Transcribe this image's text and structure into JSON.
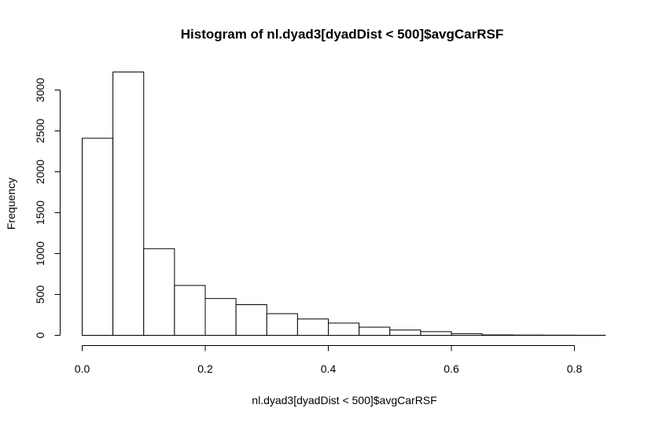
{
  "chart_data": {
    "type": "bar",
    "title": "Histogram of nl.dyad3[dyadDist < 500]$avgCarRSF",
    "xlabel": "nl.dyad3[dyadDist < 500]$avgCarRSF",
    "ylabel": "Frequency",
    "bin_edges": [
      0.0,
      0.05,
      0.1,
      0.15,
      0.2,
      0.25,
      0.3,
      0.35,
      0.4,
      0.45,
      0.5,
      0.55,
      0.6,
      0.65,
      0.7,
      0.75,
      0.8,
      0.85
    ],
    "values": [
      2410,
      3220,
      1060,
      610,
      450,
      375,
      265,
      200,
      150,
      100,
      65,
      45,
      20,
      5,
      3,
      2,
      1
    ],
    "xlim": [
      0.0,
      0.85
    ],
    "ylim": [
      0,
      3220
    ],
    "x_ticks": [
      0.0,
      0.2,
      0.4,
      0.6,
      0.8
    ],
    "x_tick_labels": [
      "0.0",
      "0.2",
      "0.4",
      "0.6",
      "0.8"
    ],
    "y_ticks": [
      0,
      500,
      1000,
      1500,
      2000,
      2500,
      3000
    ],
    "y_tick_labels": [
      "0",
      "500",
      "1000",
      "1500",
      "2000",
      "2500",
      "3000"
    ],
    "grid": false,
    "colors": {
      "bar_fill": "#ffffff",
      "bar_stroke": "#000000"
    }
  }
}
